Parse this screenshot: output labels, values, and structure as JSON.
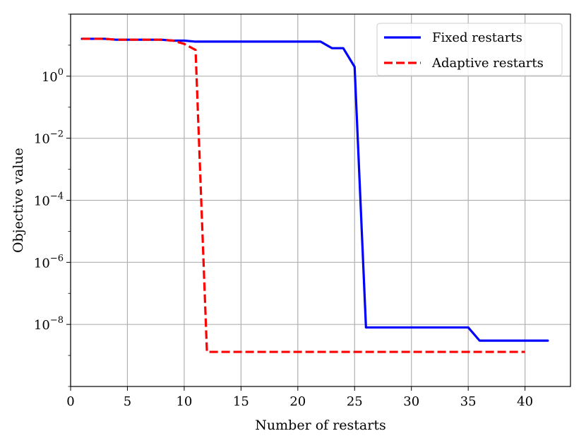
{
  "chart_data": {
    "type": "line",
    "title": "",
    "xlabel": "Number of restarts",
    "ylabel": "Objective value",
    "xlim": [
      0,
      44
    ],
    "ylim": [
      1e-10,
      100.0
    ],
    "yscale": "log",
    "grid": true,
    "legend_position": "top-right",
    "x_ticks": [
      0,
      5,
      10,
      15,
      20,
      25,
      30,
      35,
      40
    ],
    "x_tick_labels": [
      "0",
      "5",
      "10",
      "15",
      "20",
      "25",
      "30",
      "35",
      "40"
    ],
    "y_ticks": [
      1,
      0.01,
      0.0001,
      1e-06,
      1e-08
    ],
    "y_tick_labels": [
      {
        "base": "10",
        "exp": "0"
      },
      {
        "base": "10",
        "exp": "−2"
      },
      {
        "base": "10",
        "exp": "−4"
      },
      {
        "base": "10",
        "exp": "−6"
      },
      {
        "base": "10",
        "exp": "−8"
      }
    ],
    "series": [
      {
        "name": "Fixed restarts",
        "color": "#0000ff",
        "dash": "solid",
        "x": [
          1,
          2,
          3,
          4,
          5,
          6,
          7,
          8,
          9,
          10,
          11,
          12,
          13,
          14,
          15,
          16,
          17,
          18,
          19,
          20,
          21,
          22,
          23,
          24,
          25,
          26,
          27,
          28,
          29,
          30,
          31,
          32,
          33,
          34,
          35,
          36,
          37,
          38,
          39,
          40,
          41,
          42
        ],
        "y": [
          16,
          16,
          16,
          15,
          15,
          15,
          15,
          15,
          14,
          14,
          13,
          13,
          13,
          13,
          13,
          13,
          13,
          13,
          13,
          13,
          13,
          13,
          8,
          8,
          2,
          8e-09,
          8e-09,
          8e-09,
          8e-09,
          8e-09,
          8e-09,
          8e-09,
          8e-09,
          8e-09,
          8e-09,
          3e-09,
          3e-09,
          3e-09,
          3e-09,
          3e-09,
          3e-09,
          3e-09
        ]
      },
      {
        "name": "Adaptive restarts",
        "color": "#ff0000",
        "dash": "dashed",
        "x": [
          1,
          2,
          3,
          4,
          5,
          6,
          7,
          8,
          9,
          10,
          11,
          12,
          13,
          14,
          15,
          16,
          17,
          18,
          19,
          20,
          21,
          22,
          23,
          24,
          25,
          26,
          27,
          28,
          29,
          30,
          31,
          32,
          33,
          34,
          35,
          36,
          37,
          38,
          39,
          40
        ],
        "y": [
          16,
          16,
          16,
          15,
          15,
          15,
          15,
          15,
          14,
          11,
          7,
          1.3e-09,
          1.3e-09,
          1.3e-09,
          1.3e-09,
          1.3e-09,
          1.3e-09,
          1.3e-09,
          1.3e-09,
          1.3e-09,
          1.3e-09,
          1.3e-09,
          1.3e-09,
          1.3e-09,
          1.3e-09,
          1.3e-09,
          1.3e-09,
          1.3e-09,
          1.3e-09,
          1.3e-09,
          1.3e-09,
          1.3e-09,
          1.3e-09,
          1.3e-09,
          1.3e-09,
          1.3e-09,
          1.3e-09,
          1.3e-09,
          1.3e-09,
          1.3e-09
        ]
      }
    ]
  }
}
